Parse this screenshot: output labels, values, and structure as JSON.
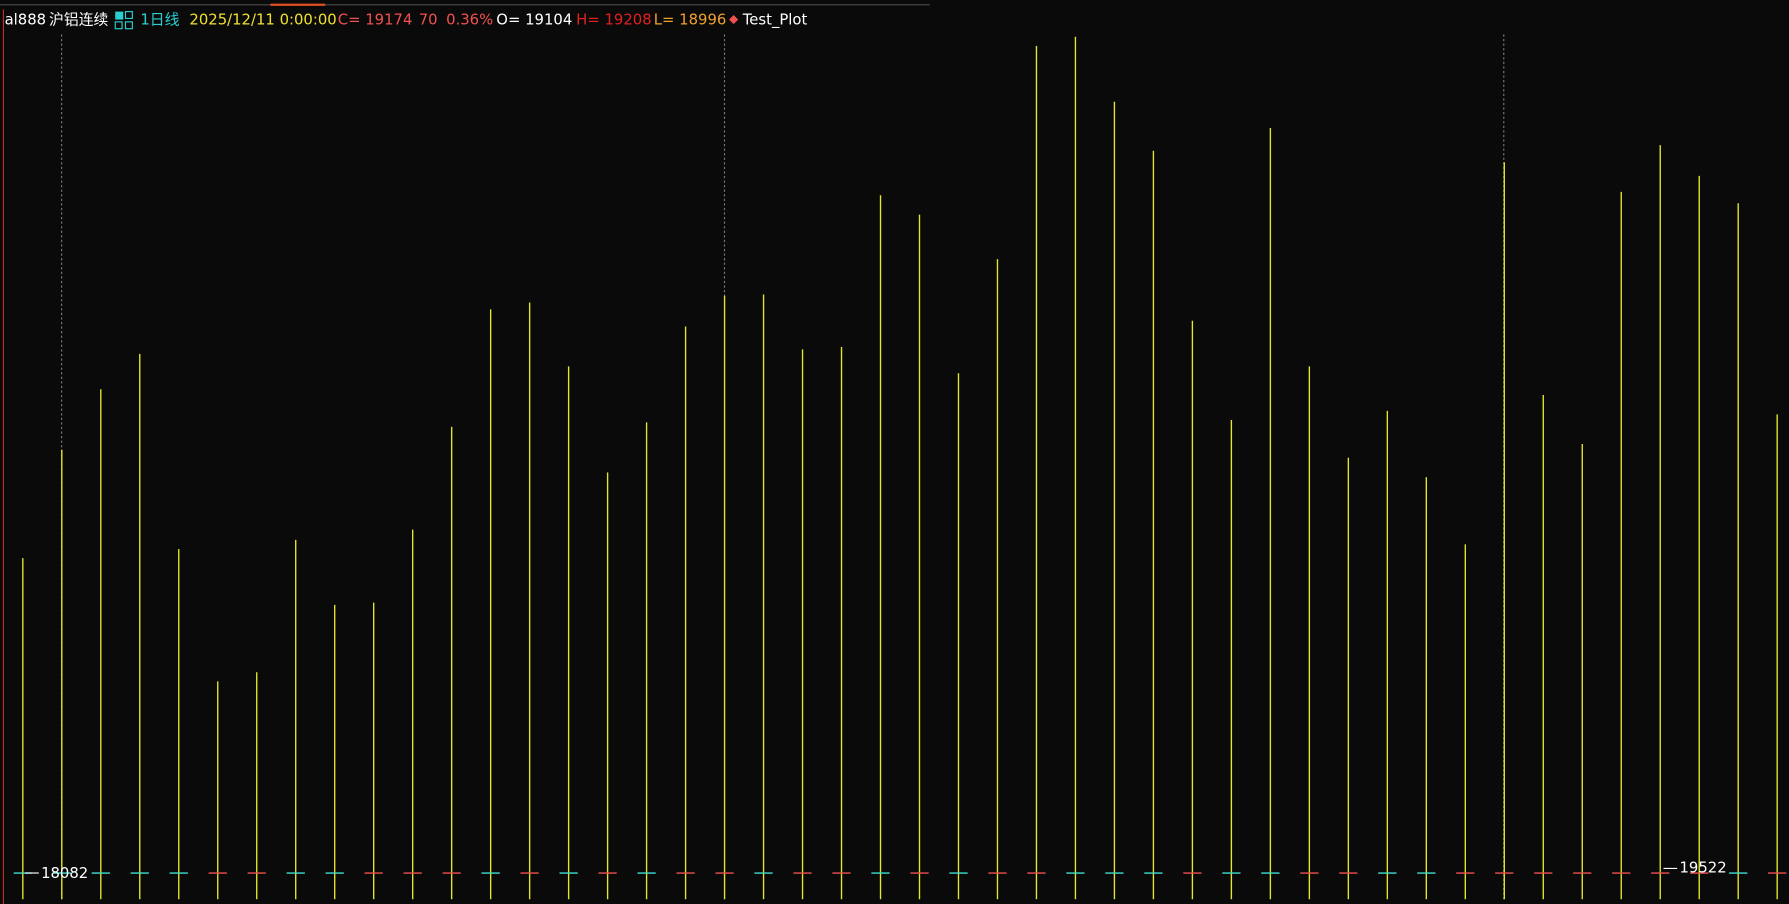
{
  "header": {
    "symbol": "al888",
    "name": "沪铝连续",
    "period": "1日线",
    "datetime": "2025/12/11 0:00:00",
    "close": "C= 19174",
    "change": "70",
    "change_pct": "0.36%",
    "open": "O= 19104",
    "high": "H= 19208",
    "low": "L= 18996",
    "indicator": "Test_Plot"
  },
  "chart_data": {
    "type": "line-bars",
    "color": "#e6e62a",
    "ylim": [
      0,
      763
    ],
    "values": [
      299,
      394,
      447,
      478,
      307,
      191,
      199,
      315,
      258,
      260,
      324,
      414,
      517,
      523,
      467,
      374,
      418,
      502,
      529,
      530,
      482,
      484,
      617,
      600,
      461,
      561,
      748,
      756,
      699,
      656,
      507,
      420,
      676,
      467,
      387,
      428,
      370,
      311,
      646,
      442,
      399,
      620,
      661,
      634,
      610,
      425
    ],
    "candle_colors": [
      "#3fe0d0",
      "#3fe0d0",
      "#3fe0d0",
      "#3fe0d0",
      "#3fe0d0",
      "#f05050",
      "#f05050",
      "#3fe0d0",
      "#3fe0d0",
      "#f05050",
      "#f05050",
      "#f05050",
      "#3fe0d0",
      "#f05050",
      "#3fe0d0",
      "#f05050",
      "#3fe0d0",
      "#f05050",
      "#f05050",
      "#3fe0d0",
      "#f05050",
      "#f05050",
      "#3fe0d0",
      "#f05050",
      "#3fe0d0",
      "#f05050",
      "#f05050",
      "#3fe0d0",
      "#3fe0d0",
      "#3fe0d0",
      "#f05050",
      "#3fe0d0",
      "#3fe0d0",
      "#f05050",
      "#f05050",
      "#3fe0d0",
      "#3fe0d0",
      "#f05050",
      "#f05050",
      "#f05050",
      "#f05050",
      "#f05050",
      "#f05050",
      "#f05050",
      "#3fe0d0",
      "#f05050"
    ],
    "low_label": "18082",
    "high_label": "19522"
  }
}
